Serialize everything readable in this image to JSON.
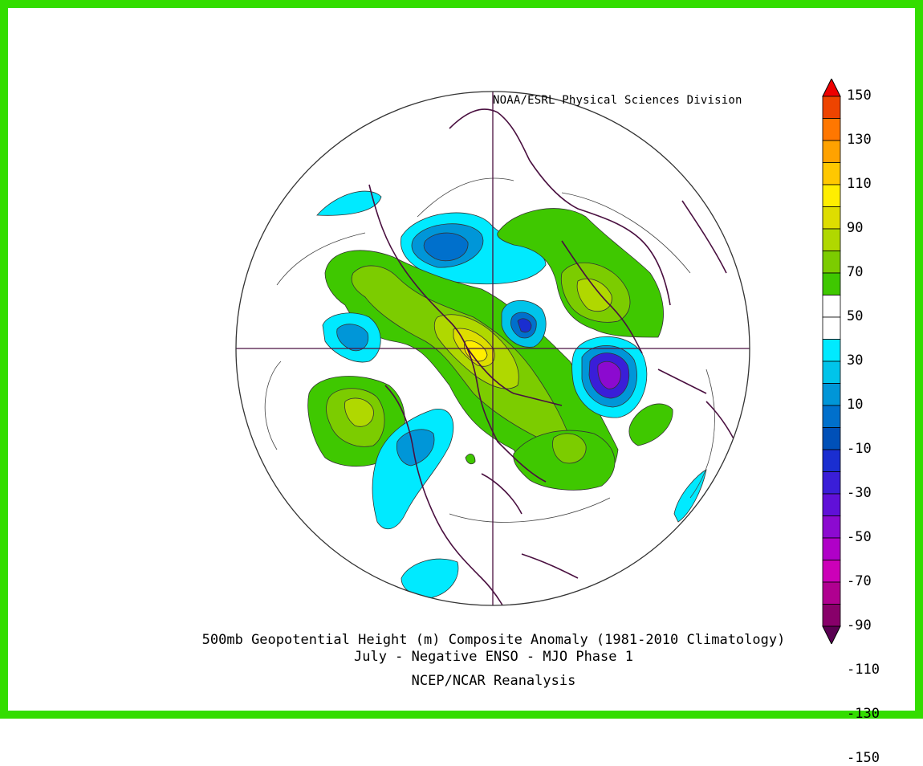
{
  "header": {
    "credit": "NOAA/ESRL Physical Sciences Division"
  },
  "footer": {
    "title_line1": "500mb Geopotential Height (m) Composite Anomaly (1981-2010 Climatology)",
    "title_line2": "July - Negative ENSO - MJO Phase 1",
    "source": "NCEP/NCAR Reanalysis"
  },
  "colorbar": {
    "labels": [
      "150",
      "130",
      "110",
      "90",
      "70",
      "50",
      "30",
      "10",
      "-10",
      "-30",
      "-50",
      "-70",
      "-90",
      "-110",
      "-130",
      "-150"
    ],
    "colors": [
      "#ee0000",
      "#ee4400",
      "#ff7700",
      "#ffa200",
      "#ffc800",
      "#ffee00",
      "#dedd00",
      "#b0d800",
      "#7ccc00",
      "#3fc800",
      "#ffffff",
      "#ffffff",
      "#00eaff",
      "#00c4ea",
      "#0096d8",
      "#0070cc",
      "#0050b8",
      "#1a2ed0",
      "#3a1ed8",
      "#6010d8",
      "#8c0ad0",
      "#b000c8",
      "#cc00b8",
      "#b00090",
      "#88006a",
      "#5a0052"
    ]
  },
  "frame_color": "#33dd00",
  "map_features": [
    "polar-stereographic-projection",
    "coastlines",
    "political-borders",
    "anomaly-contours"
  ]
}
